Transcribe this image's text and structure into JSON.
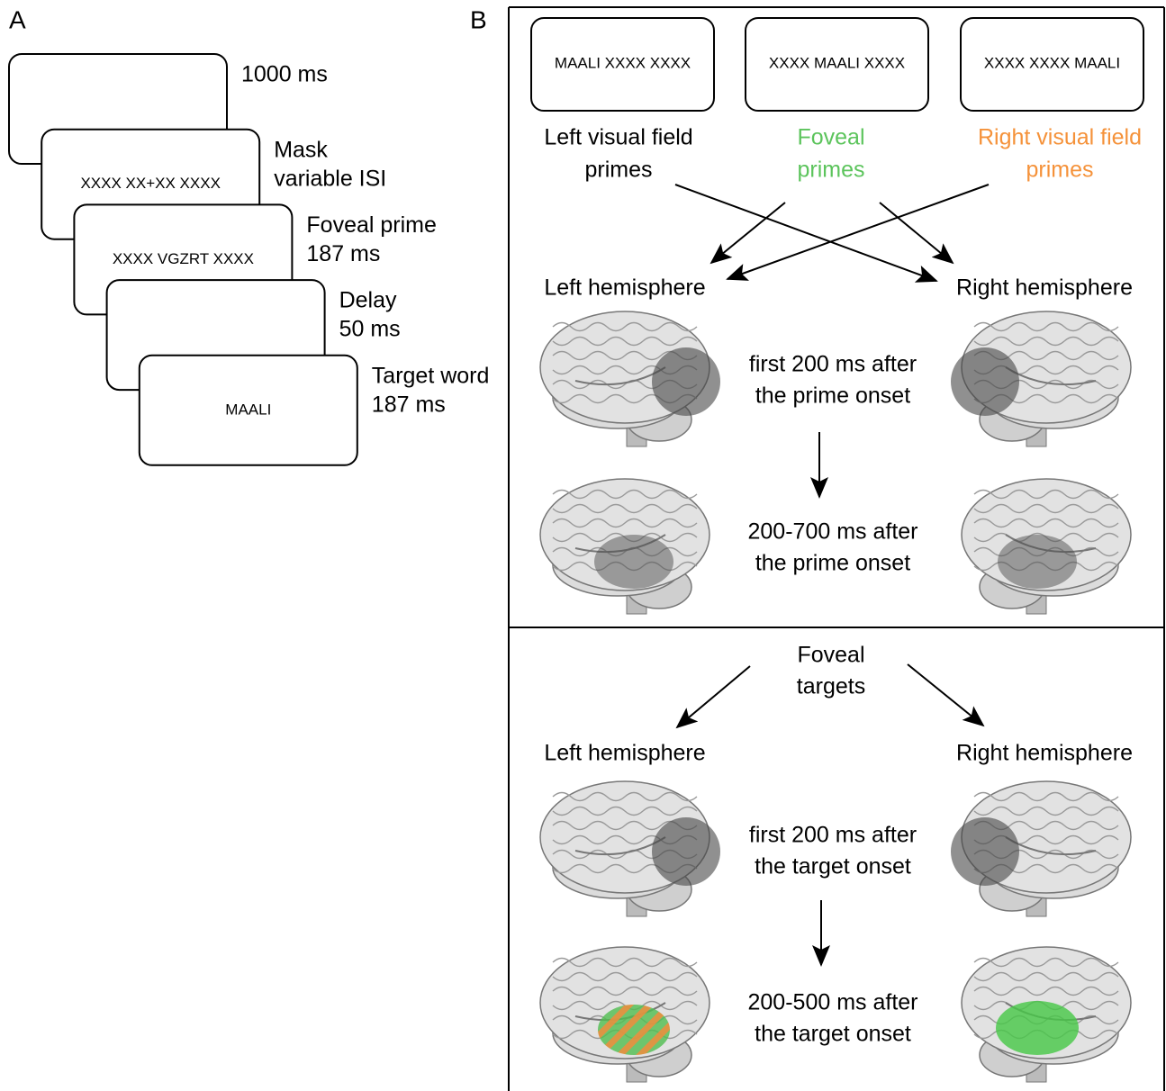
{
  "panel_a": {
    "label": "A",
    "screens": [
      {
        "caption": [
          "1000 ms"
        ]
      },
      {
        "text": "XXXX XX+XX XXXX",
        "caption": [
          "Mask",
          "variable ISI"
        ]
      },
      {
        "text": "XXXX VGZRT XXXX",
        "caption": [
          "Foveal prime",
          "187 ms"
        ]
      },
      {
        "caption": [
          "Delay",
          "50 ms"
        ]
      },
      {
        "text": "MAALI",
        "caption": [
          "Target word",
          "187 ms"
        ]
      }
    ]
  },
  "panel_b": {
    "label": "B",
    "primes": {
      "boxes": [
        "MAALI XXXX XXXX",
        "XXXX MAALI XXXX",
        "XXXX XXXX MAALI"
      ],
      "labels": [
        {
          "lines": [
            "Left visual field",
            "primes"
          ],
          "color": "#000000"
        },
        {
          "lines": [
            "Foveal",
            "primes"
          ],
          "color": "#5cc45c"
        },
        {
          "lines": [
            "Right visual field",
            "primes"
          ],
          "color": "#f5923a"
        }
      ],
      "hemispheres": [
        "Left hemisphere",
        "Right hemisphere"
      ],
      "time_windows": [
        [
          "first 200 ms after",
          "the prime onset"
        ],
        [
          "200-700 ms after",
          "the prime onset"
        ]
      ]
    },
    "targets": {
      "label": [
        "Foveal",
        "targets"
      ],
      "hemispheres": [
        "Left hemisphere",
        "Right hemisphere"
      ],
      "time_windows": [
        [
          "first 200 ms after",
          "the target onset"
        ],
        [
          "200-500 ms after",
          "the target onset"
        ]
      ]
    }
  }
}
